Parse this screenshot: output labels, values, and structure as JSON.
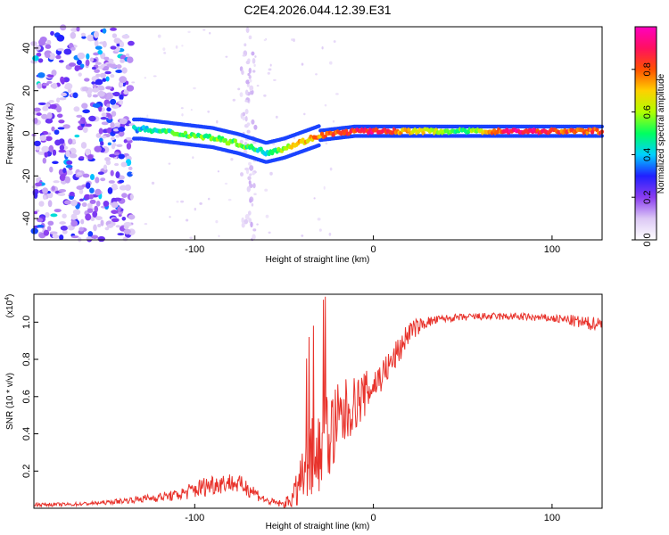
{
  "title": "C2E4.2026.044.12.39.E31",
  "chart_data": [
    {
      "type": "heatmap",
      "title": "C2E4.2026.044.12.39.E31",
      "xlabel": "Height of straight line (km)",
      "ylabel": "Frequency (Hz)",
      "xlim": [
        -190,
        128
      ],
      "ylim": [
        -50,
        50
      ],
      "x_ticks": [
        -100,
        0,
        100
      ],
      "x_tick_labels": [
        "-100",
        "0",
        "100"
      ],
      "y_ticks": [
        -40,
        -20,
        0,
        20,
        40
      ],
      "y_tick_labels": [
        "-40",
        "-20",
        "0",
        "20",
        "40"
      ],
      "colorbar": {
        "label": "Normalized spectral amplitude",
        "range": [
          0,
          1
        ],
        "ticks": [
          0.0,
          0.2,
          0.4,
          0.6,
          0.8
        ],
        "tick_labels": [
          "0.0",
          "0.2",
          "0.4",
          "0.6",
          "0.8"
        ],
        "colormap": [
          "#ffffff",
          "#dcc8f5",
          "#8a3cf0",
          "#2020ff",
          "#00d0ff",
          "#00ff60",
          "#b0ff00",
          "#ffd000",
          "#ff5000",
          "#ff1060",
          "#ff00c0"
        ]
      },
      "ridge": {
        "x": [
          -130,
          -110,
          -90,
          -75,
          -60,
          -50,
          -40,
          -30,
          -20,
          -10,
          0,
          20,
          50,
          80,
          100,
          128
        ],
        "frequency": [
          2,
          0,
          -2,
          -5,
          -9,
          -7,
          -4,
          -1,
          0,
          1,
          1,
          1,
          1,
          1,
          1,
          1
        ],
        "amplitude": [
          0.4,
          0.5,
          0.55,
          0.55,
          0.45,
          0.6,
          0.7,
          0.75,
          0.8,
          0.85,
          0.9,
          0.7,
          0.5,
          0.95,
          0.8,
          0.8
        ]
      }
    },
    {
      "type": "line",
      "xlabel": "Height of straight line (km)",
      "ylabel": "SNR (10 * v/v)",
      "y_scale_label": "(x10",
      "y_scale_exp": "4",
      "xlim": [
        -190,
        128
      ],
      "ylim": [
        0,
        1.15
      ],
      "x_ticks": [
        -100,
        0,
        100
      ],
      "x_tick_labels": [
        "-100",
        "0",
        "100"
      ],
      "y_ticks": [
        0.2,
        0.4,
        0.6,
        0.8,
        1.0
      ],
      "y_tick_labels": [
        "0.2",
        "0.4",
        "0.6",
        "0.8",
        "1.0"
      ],
      "color": "#e8322b",
      "series": [
        {
          "name": "SNR",
          "x": [
            -190,
            -170,
            -150,
            -130,
            -110,
            -100,
            -90,
            -80,
            -70,
            -60,
            -50,
            -45,
            -40,
            -36,
            -32,
            -28,
            -24,
            -20,
            -16,
            -12,
            -8,
            -4,
            0,
            5,
            10,
            15,
            20,
            30,
            40,
            60,
            80,
            100,
            110,
            120,
            128
          ],
          "values": [
            0.02,
            0.02,
            0.03,
            0.05,
            0.07,
            0.1,
            0.13,
            0.14,
            0.11,
            0.04,
            0.02,
            0.06,
            0.14,
            0.26,
            0.3,
            0.34,
            0.4,
            0.45,
            0.5,
            0.55,
            0.58,
            0.62,
            0.66,
            0.72,
            0.78,
            0.86,
            0.95,
            1.0,
            1.02,
            1.03,
            1.03,
            1.02,
            1.01,
            0.99,
            1.0
          ],
          "noise": [
            0.01,
            0.01,
            0.01,
            0.02,
            0.03,
            0.05,
            0.06,
            0.05,
            0.05,
            0.02,
            0.02,
            0.06,
            0.15,
            0.22,
            0.24,
            0.26,
            0.26,
            0.22,
            0.2,
            0.15,
            0.14,
            0.12,
            0.1,
            0.09,
            0.08,
            0.08,
            0.06,
            0.03,
            0.02,
            0.02,
            0.02,
            0.02,
            0.03,
            0.04,
            0.03
          ]
        }
      ]
    }
  ]
}
